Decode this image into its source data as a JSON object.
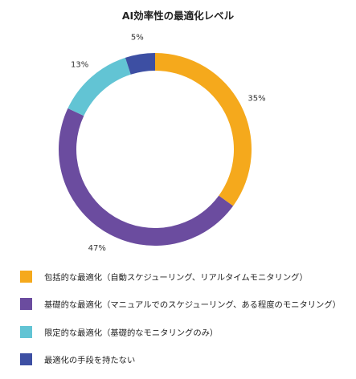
{
  "chart_data": {
    "type": "pie",
    "title": "AI効率性の最適化レベル",
    "categories": [
      "包括的な最適化（自動スケジューリング、リアルタイムモニタリング）",
      "基礎的な最適化（マニュアルでのスケジューリング、ある程度のモニタリング）",
      "限定的な最適化（基礎的なモニタリングのみ）",
      "最適化の手段を持たない"
    ],
    "values": [
      35,
      47,
      13,
      5
    ],
    "data_labels": [
      "35%",
      "47%",
      "13%",
      "5%"
    ],
    "colors": [
      "#F5A91C",
      "#6B4C9F",
      "#62C4D4",
      "#3D4FA3"
    ],
    "donut": true,
    "legend_position": "bottom"
  }
}
